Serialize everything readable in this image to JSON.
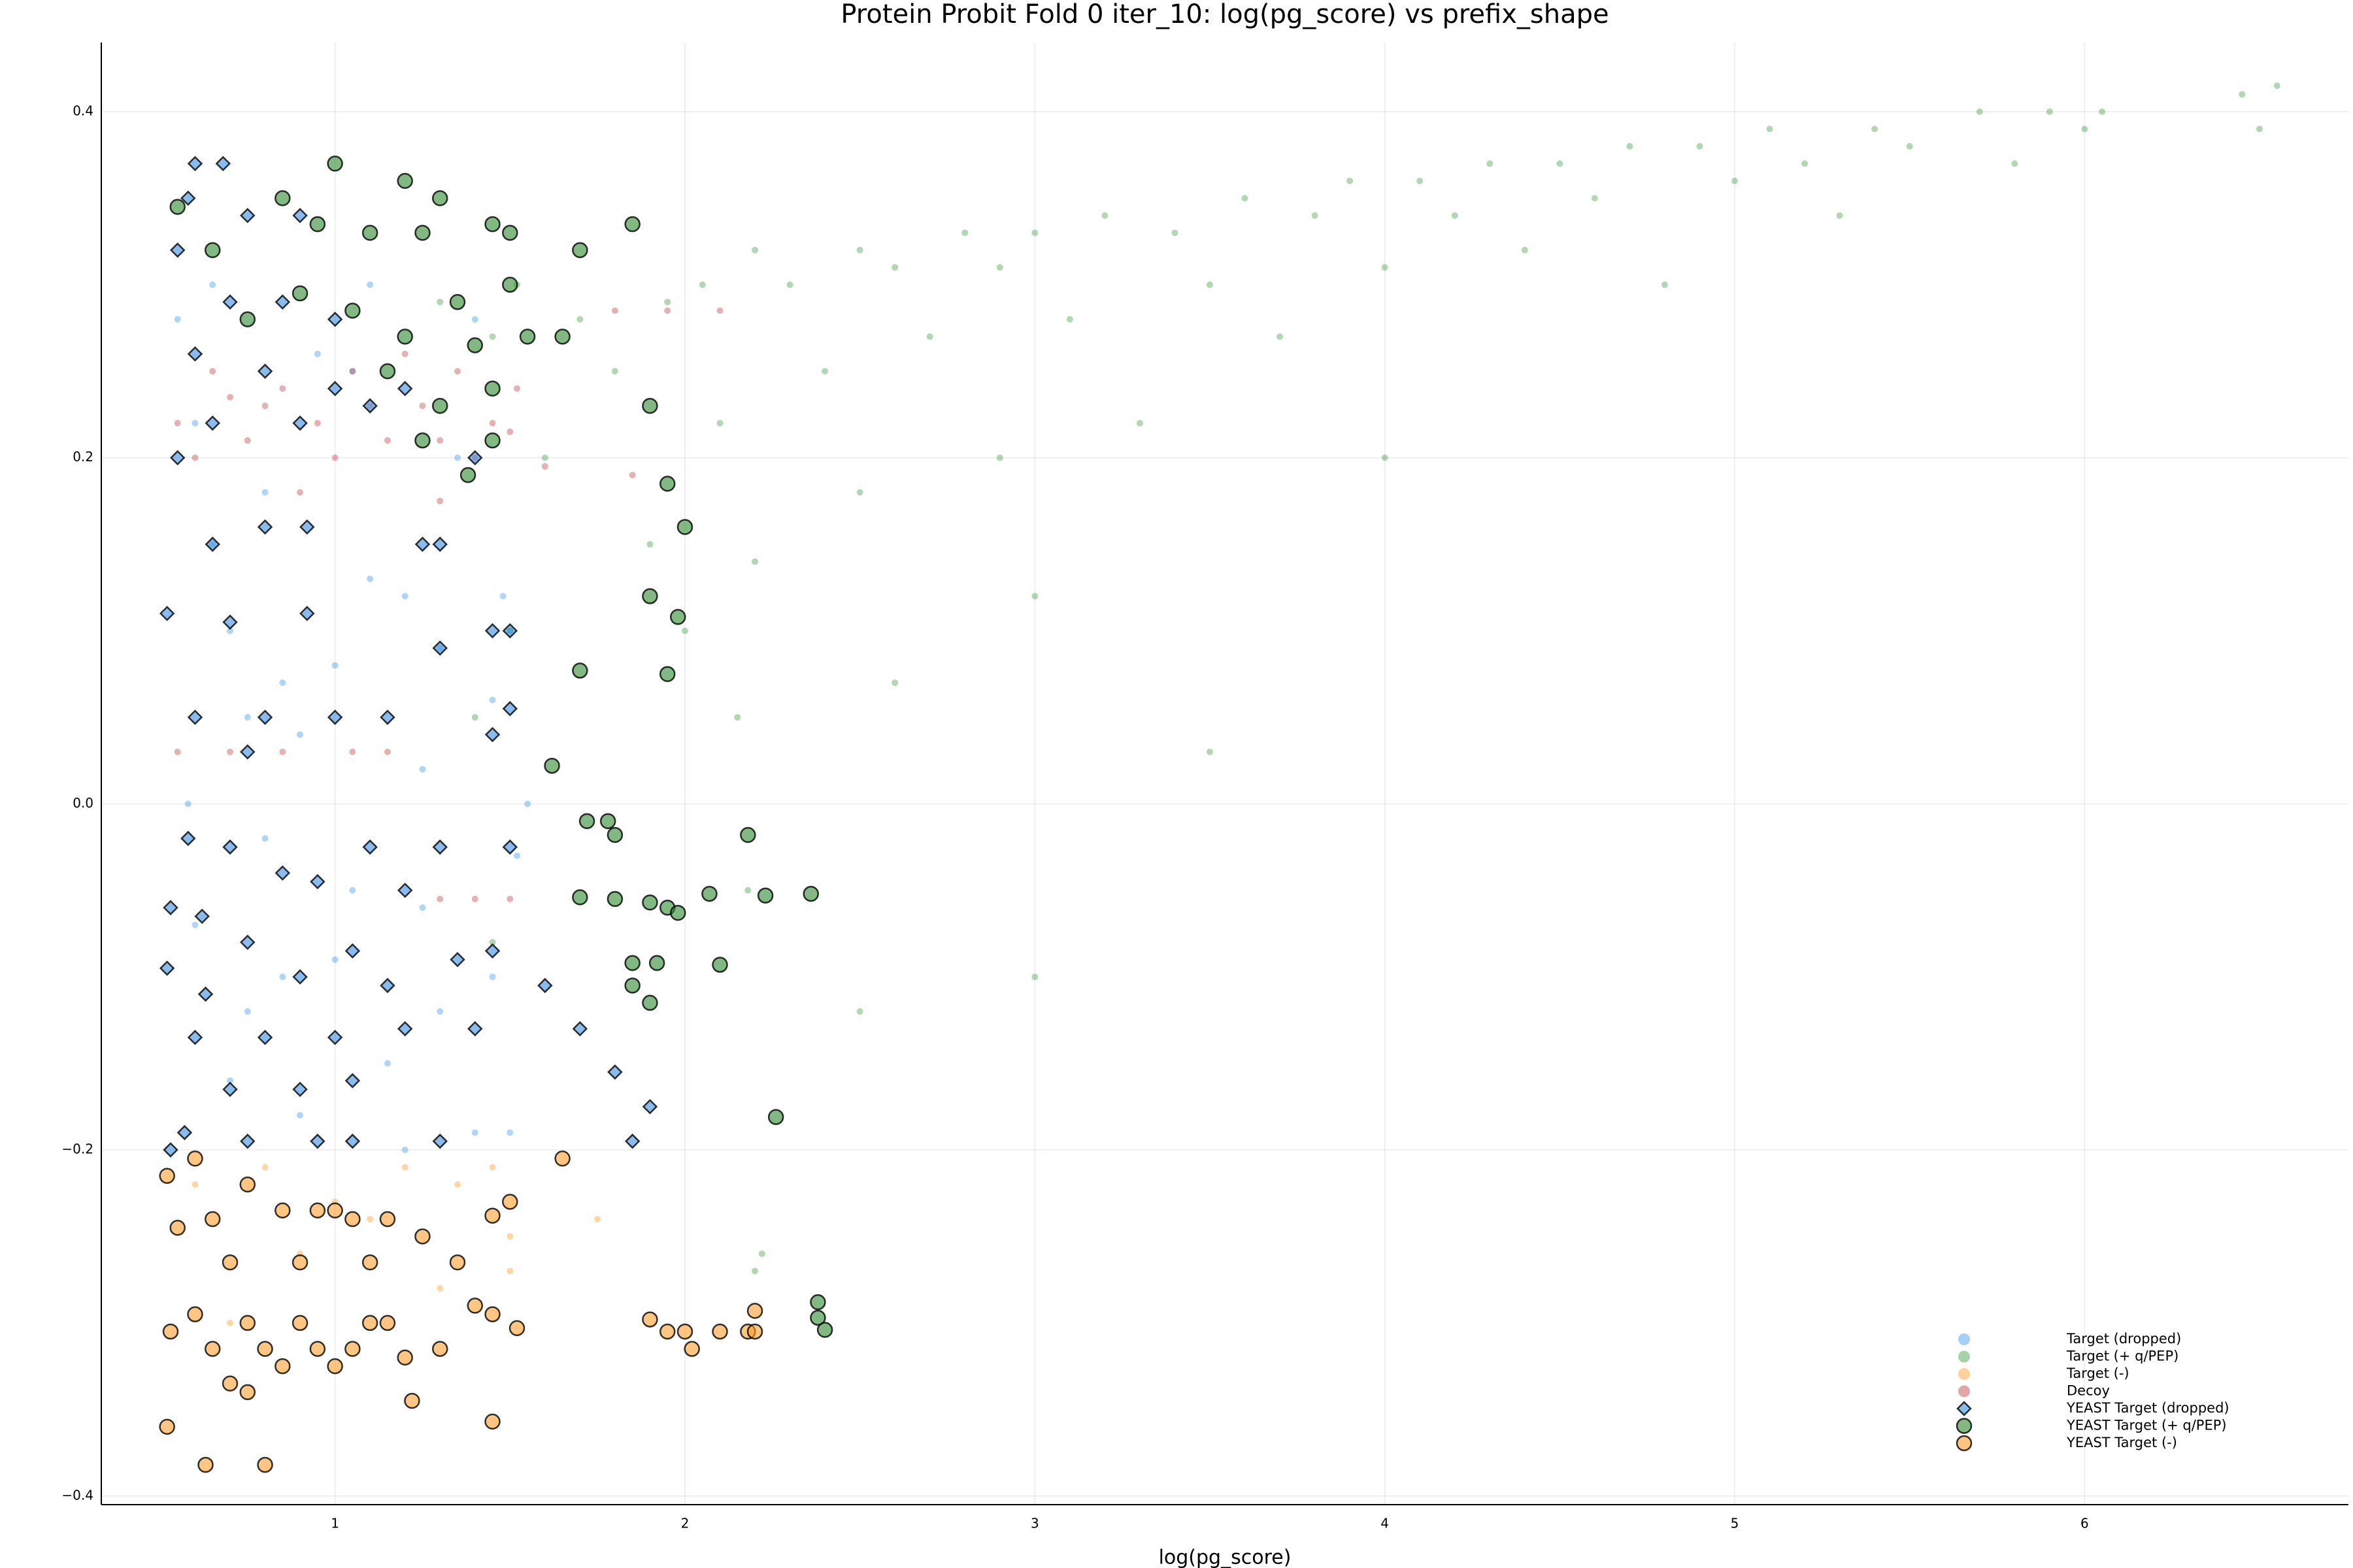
{
  "chart_data": {
    "type": "scatter",
    "title": "Protein Probit Fold 0 iter_10: log(pg_score) vs prefix_shape",
    "x_label": "log(pg_score)",
    "xlim": [
      0.332,
      6.754
    ],
    "ylim": [
      -0.405,
      0.44
    ],
    "xticks": [
      1,
      2,
      3,
      4,
      5,
      6
    ],
    "yticks": [
      {
        "value": -0.4,
        "label": "−0.4"
      },
      {
        "value": -0.2,
        "label": "−0.2"
      },
      {
        "value": 0,
        "label": "0.0"
      },
      0.2,
      0.4
    ],
    "grid": true,
    "legend": "lower right",
    "series": [
      {
        "name": "Target (dropped)",
        "color": "#1e88e5",
        "marker": "dot",
        "x": [
          0.55,
          0.6,
          0.65,
          0.7,
          0.75,
          0.8,
          0.85,
          0.9,
          0.95,
          1.0,
          1.05,
          1.1,
          1.15,
          1.2,
          1.25,
          1.3,
          1.35,
          1.4,
          1.45,
          1.5,
          1.52,
          1.5,
          0.6,
          0.7,
          0.8,
          0.9,
          1.0,
          1.1,
          1.2,
          1.3,
          1.4,
          1.48,
          0.65,
          0.75,
          0.85,
          1.05,
          1.25,
          1.45,
          1.55,
          0.58
        ],
        "values": [
          0.28,
          0.22,
          0.15,
          0.1,
          0.05,
          -0.02,
          -0.1,
          -0.18,
          0.26,
          0.08,
          -0.05,
          0.3,
          -0.15,
          0.12,
          0.02,
          -0.12,
          0.2,
          -0.19,
          0.06,
          0.1,
          -0.03,
          -0.19,
          -0.07,
          -0.16,
          0.18,
          0.04,
          -0.09,
          0.13,
          -0.2,
          0.09,
          0.28,
          0.12,
          0.3,
          -0.12,
          0.07,
          0.25,
          -0.06,
          -0.1,
          0.0,
          0.0
        ]
      },
      {
        "name": "Target (+ q/PEP)",
        "color": "#228b22",
        "marker": "dot",
        "x": [
          1.3,
          1.45,
          1.52,
          1.6,
          1.7,
          1.8,
          1.9,
          1.95,
          2.0,
          2.05,
          2.1,
          2.15,
          2.2,
          2.2,
          2.18,
          2.3,
          2.4,
          2.5,
          2.5,
          2.6,
          2.6,
          2.7,
          2.8,
          2.9,
          2.9,
          3.0,
          3.0,
          3.1,
          3.2,
          3.3,
          3.4,
          3.5,
          3.5,
          3.6,
          3.7,
          3.8,
          3.9,
          4.0,
          4.0,
          4.1,
          4.2,
          4.3,
          4.4,
          4.5,
          4.6,
          4.7,
          4.8,
          4.9,
          5.0,
          5.1,
          5.2,
          5.3,
          5.4,
          5.5,
          5.7,
          5.8,
          5.9,
          6.0,
          6.05,
          6.45,
          6.5,
          6.55,
          2.2,
          2.22,
          1.4,
          1.5,
          1.45,
          3.0,
          2.5
        ],
        "values": [
          0.29,
          0.27,
          0.3,
          0.2,
          0.28,
          0.25,
          0.15,
          0.29,
          0.1,
          0.3,
          0.22,
          0.05,
          0.32,
          0.14,
          -0.05,
          0.3,
          0.25,
          0.32,
          0.18,
          0.31,
          0.07,
          0.27,
          0.33,
          0.31,
          0.2,
          0.33,
          0.12,
          0.28,
          0.34,
          0.22,
          0.33,
          0.3,
          0.03,
          0.35,
          0.27,
          0.34,
          0.36,
          0.31,
          0.2,
          0.36,
          0.34,
          0.37,
          0.32,
          0.37,
          0.35,
          0.38,
          0.3,
          0.38,
          0.36,
          0.39,
          0.37,
          0.34,
          0.39,
          0.38,
          0.4,
          0.37,
          0.4,
          0.39,
          0.4,
          0.41,
          0.39,
          0.415,
          -0.27,
          -0.26,
          0.05,
          0.1,
          -0.08,
          -0.1,
          -0.12
        ]
      },
      {
        "name": "Target (-)",
        "color": "#ff8c00",
        "marker": "dot",
        "x": [
          0.6,
          0.8,
          1.0,
          1.2,
          1.35,
          1.45,
          1.5,
          0.9,
          1.1,
          1.3,
          1.75,
          0.7,
          1.5
        ],
        "values": [
          -0.22,
          -0.21,
          -0.23,
          -0.21,
          -0.22,
          -0.21,
          -0.25,
          -0.26,
          -0.24,
          -0.28,
          -0.24,
          -0.3,
          -0.27
        ]
      },
      {
        "name": "Decoy",
        "color": "#b22222",
        "marker": "dot",
        "x": [
          0.55,
          0.65,
          0.75,
          0.85,
          0.95,
          1.05,
          1.15,
          1.25,
          1.35,
          1.45,
          1.52,
          0.6,
          0.8,
          1.0,
          1.2,
          1.4,
          0.7,
          1.1,
          1.3,
          1.5,
          0.9,
          1.3,
          0.55,
          0.7,
          0.85,
          1.05,
          1.15,
          1.3,
          1.4,
          1.5,
          1.8,
          1.95,
          2.1,
          1.6,
          1.85
        ],
        "values": [
          0.22,
          0.25,
          0.21,
          0.24,
          0.22,
          0.25,
          0.21,
          0.23,
          0.25,
          0.22,
          0.24,
          0.2,
          0.23,
          0.2,
          0.26,
          0.2,
          0.235,
          0.23,
          0.21,
          0.215,
          0.18,
          0.175,
          0.03,
          0.03,
          0.03,
          0.03,
          0.03,
          -0.055,
          -0.055,
          -0.055,
          0.285,
          0.285,
          0.285,
          0.195,
          0.19
        ]
      },
      {
        "name": "YEAST Target (dropped)",
        "color": "#3c8ee0",
        "marker": "diamond",
        "x": [
          0.6,
          0.68,
          0.58,
          0.75,
          0.9,
          0.55,
          0.7,
          0.85,
          1.0,
          0.6,
          0.8,
          1.0,
          1.2,
          0.65,
          0.9,
          1.1,
          0.55,
          1.4,
          0.65,
          0.8,
          0.92,
          1.25,
          1.3,
          0.52,
          0.7,
          0.92,
          1.3,
          1.45,
          1.5,
          0.6,
          0.8,
          1.0,
          1.15,
          1.45,
          1.5,
          0.75,
          0.58,
          0.7,
          1.1,
          1.3,
          1.5,
          0.53,
          0.62,
          0.85,
          0.95,
          1.2,
          0.75,
          1.05,
          1.35,
          1.45,
          0.52,
          0.63,
          0.9,
          1.15,
          1.6,
          0.6,
          0.8,
          1.0,
          1.2,
          1.4,
          1.7,
          0.7,
          0.9,
          1.05,
          1.8,
          0.57,
          0.75,
          0.95,
          1.05,
          1.3,
          1.85,
          1.9,
          0.53
        ],
        "values": [
          0.37,
          0.37,
          0.35,
          0.34,
          0.34,
          0.32,
          0.29,
          0.29,
          0.28,
          0.26,
          0.25,
          0.24,
          0.24,
          0.22,
          0.22,
          0.23,
          0.2,
          0.2,
          0.15,
          0.16,
          0.16,
          0.15,
          0.15,
          0.11,
          0.105,
          0.11,
          0.09,
          0.1,
          0.1,
          0.05,
          0.05,
          0.05,
          0.05,
          0.04,
          0.055,
          0.03,
          -0.02,
          -0.025,
          -0.025,
          -0.025,
          -0.025,
          -0.06,
          -0.065,
          -0.04,
          -0.045,
          -0.05,
          -0.08,
          -0.085,
          -0.09,
          -0.085,
          -0.095,
          -0.11,
          -0.1,
          -0.105,
          -0.105,
          -0.135,
          -0.135,
          -0.135,
          -0.13,
          -0.13,
          -0.13,
          -0.165,
          -0.165,
          -0.16,
          -0.155,
          -0.19,
          -0.195,
          -0.195,
          -0.195,
          -0.195,
          -0.195,
          -0.175,
          -0.2
        ]
      },
      {
        "name": "YEAST Target (+ q/PEP)",
        "color": "#2e8b2e",
        "marker": "circle",
        "x": [
          0.55,
          1.0,
          0.85,
          1.2,
          1.3,
          0.65,
          0.95,
          1.1,
          1.25,
          1.45,
          1.5,
          0.9,
          1.05,
          1.35,
          1.5,
          0.75,
          1.2,
          1.4,
          1.55,
          1.65,
          1.7,
          1.85,
          1.15,
          1.3,
          1.45,
          1.25,
          1.45,
          1.38,
          1.9,
          1.95,
          2.0,
          1.9,
          1.98,
          1.95,
          1.7,
          1.62,
          1.72,
          1.78,
          1.8,
          2.18,
          1.7,
          1.8,
          1.9,
          1.95,
          1.98,
          2.07,
          2.23,
          2.36,
          1.85,
          1.92,
          2.1,
          1.85,
          1.9,
          2.26,
          2.38,
          2.38,
          2.4
        ],
        "values": [
          0.345,
          0.37,
          0.35,
          0.36,
          0.35,
          0.32,
          0.335,
          0.33,
          0.33,
          0.335,
          0.33,
          0.295,
          0.285,
          0.29,
          0.3,
          0.28,
          0.27,
          0.265,
          0.27,
          0.27,
          0.32,
          0.335,
          0.25,
          0.23,
          0.24,
          0.21,
          0.21,
          0.19,
          0.23,
          0.185,
          0.16,
          0.12,
          0.108,
          0.075,
          0.077,
          0.022,
          -0.01,
          -0.01,
          -0.018,
          -0.018,
          -0.054,
          -0.055,
          -0.057,
          -0.06,
          -0.063,
          -0.052,
          -0.053,
          -0.052,
          -0.092,
          -0.092,
          -0.093,
          -0.105,
          -0.115,
          -0.181,
          -0.288,
          -0.297,
          -0.304
        ]
      },
      {
        "name": "YEAST Target (-)",
        "color": "#ff9f2e",
        "marker": "circle",
        "x": [
          0.52,
          0.6,
          0.75,
          0.55,
          0.65,
          0.85,
          0.95,
          1.0,
          1.05,
          1.15,
          1.25,
          1.45,
          1.5,
          0.7,
          0.9,
          1.1,
          1.35,
          1.65,
          0.6,
          0.75,
          0.9,
          1.1,
          1.15,
          1.4,
          1.45,
          1.52,
          0.53,
          0.65,
          0.8,
          0.95,
          1.05,
          1.2,
          1.3,
          0.7,
          0.85,
          1.0,
          0.75,
          1.22,
          0.52,
          1.45,
          0.63,
          0.8,
          1.9,
          1.95,
          2.0,
          2.02,
          2.1,
          2.18,
          2.2,
          2.2
        ],
        "values": [
          -0.215,
          -0.205,
          -0.22,
          -0.245,
          -0.24,
          -0.235,
          -0.235,
          -0.235,
          -0.24,
          -0.24,
          -0.25,
          -0.238,
          -0.23,
          -0.265,
          -0.265,
          -0.265,
          -0.265,
          -0.205,
          -0.295,
          -0.3,
          -0.3,
          -0.3,
          -0.3,
          -0.29,
          -0.295,
          -0.303,
          -0.305,
          -0.315,
          -0.315,
          -0.315,
          -0.315,
          -0.32,
          -0.315,
          -0.335,
          -0.325,
          -0.325,
          -0.34,
          -0.345,
          -0.36,
          -0.357,
          -0.382,
          -0.382,
          -0.298,
          -0.305,
          -0.305,
          -0.315,
          -0.305,
          -0.305,
          -0.305,
          -0.293
        ]
      }
    ]
  }
}
